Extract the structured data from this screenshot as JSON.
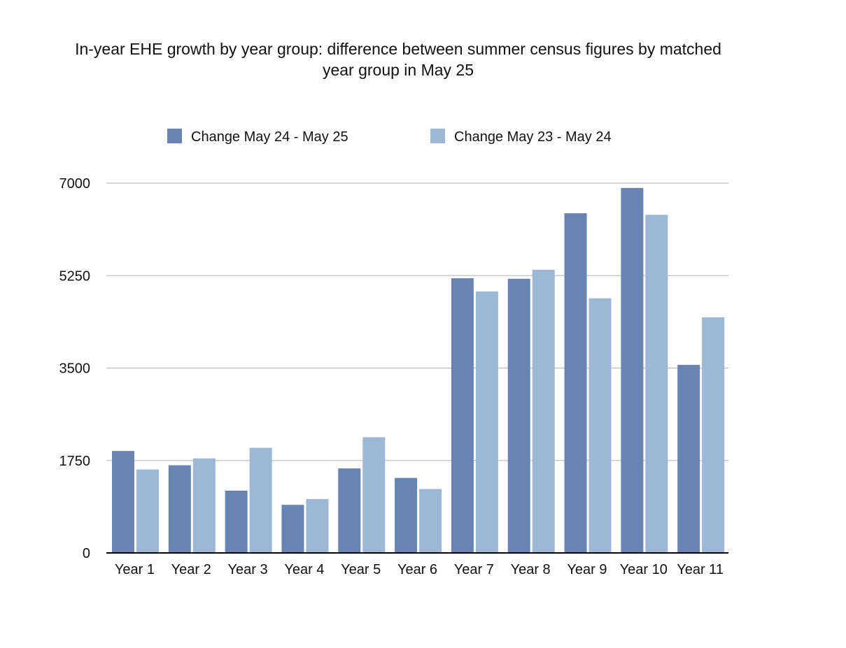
{
  "chart_data": {
    "type": "bar",
    "title_lines": [
      "In-year EHE growth by year group: difference between summer census figures by matched",
      "year group in May 25"
    ],
    "xlabel": "",
    "ylabel": "",
    "categories": [
      "Year 1",
      "Year 2",
      "Year 3",
      "Year 4",
      "Year 5",
      "Year 6",
      "Year 7",
      "Year 8",
      "Year 9",
      "Year 10",
      "Year 11"
    ],
    "series": [
      {
        "name": "Change May 24 - May 25",
        "color": "#6784b3",
        "values": [
          1930,
          1660,
          1180,
          910,
          1600,
          1420,
          5200,
          5190,
          6430,
          6910,
          3560
        ]
      },
      {
        "name": "Change May 23 - May 24",
        "color": "#9db7d6",
        "values": [
          1580,
          1790,
          1990,
          1020,
          2190,
          1210,
          4950,
          5360,
          4820,
          6400,
          4460
        ]
      }
    ],
    "ylim": [
      0,
      7000
    ],
    "yticks": [
      "0",
      "1750",
      "3500",
      "5250",
      "7000"
    ],
    "grid": true,
    "legend_position": "top"
  }
}
